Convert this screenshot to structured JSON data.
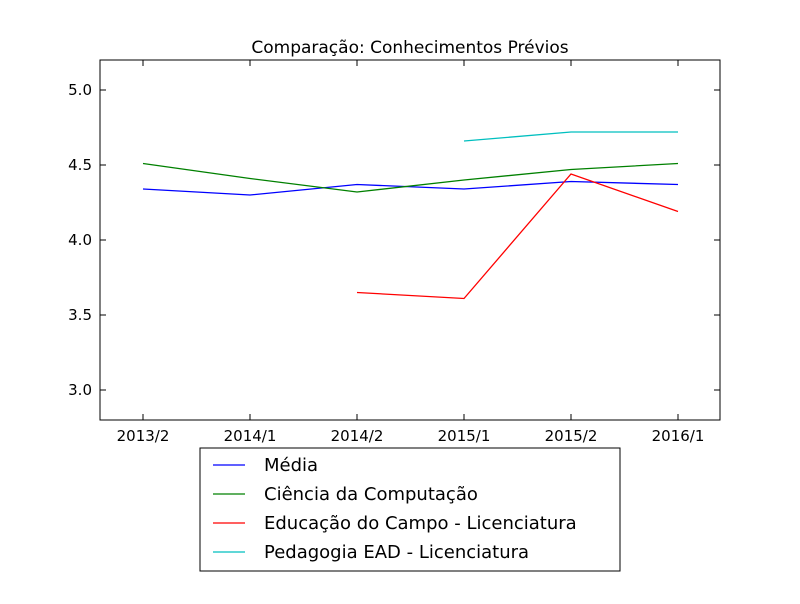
{
  "chart_data": {
    "type": "line",
    "title": "Comparação: Conhecimentos Prévios",
    "xlabel": "",
    "ylabel": "",
    "categories": [
      "2013/2",
      "2014/1",
      "2014/2",
      "2015/1",
      "2015/2",
      "2016/1"
    ],
    "ylim": [
      2.8,
      5.2
    ],
    "yticks": [
      "3.0",
      "3.5",
      "4.0",
      "4.5",
      "5.0"
    ],
    "grid": false,
    "legend_position": "bottom-center, below the axes",
    "series": [
      {
        "name": "Média",
        "color": "#0000ff",
        "values": [
          4.34,
          4.3,
          4.37,
          4.34,
          4.39,
          4.37
        ]
      },
      {
        "name": "Ciência da Computação",
        "color": "#008000",
        "values": [
          4.51,
          4.41,
          4.32,
          4.4,
          4.47,
          4.51
        ]
      },
      {
        "name": "Educação do Campo - Licenciatura",
        "color": "#ff0000",
        "values": [
          null,
          null,
          3.65,
          3.61,
          4.44,
          4.19
        ]
      },
      {
        "name": "Pedagogia EAD - Licenciatura",
        "color": "#00bfbf",
        "values": [
          null,
          null,
          null,
          4.66,
          4.72,
          4.72
        ]
      }
    ]
  }
}
